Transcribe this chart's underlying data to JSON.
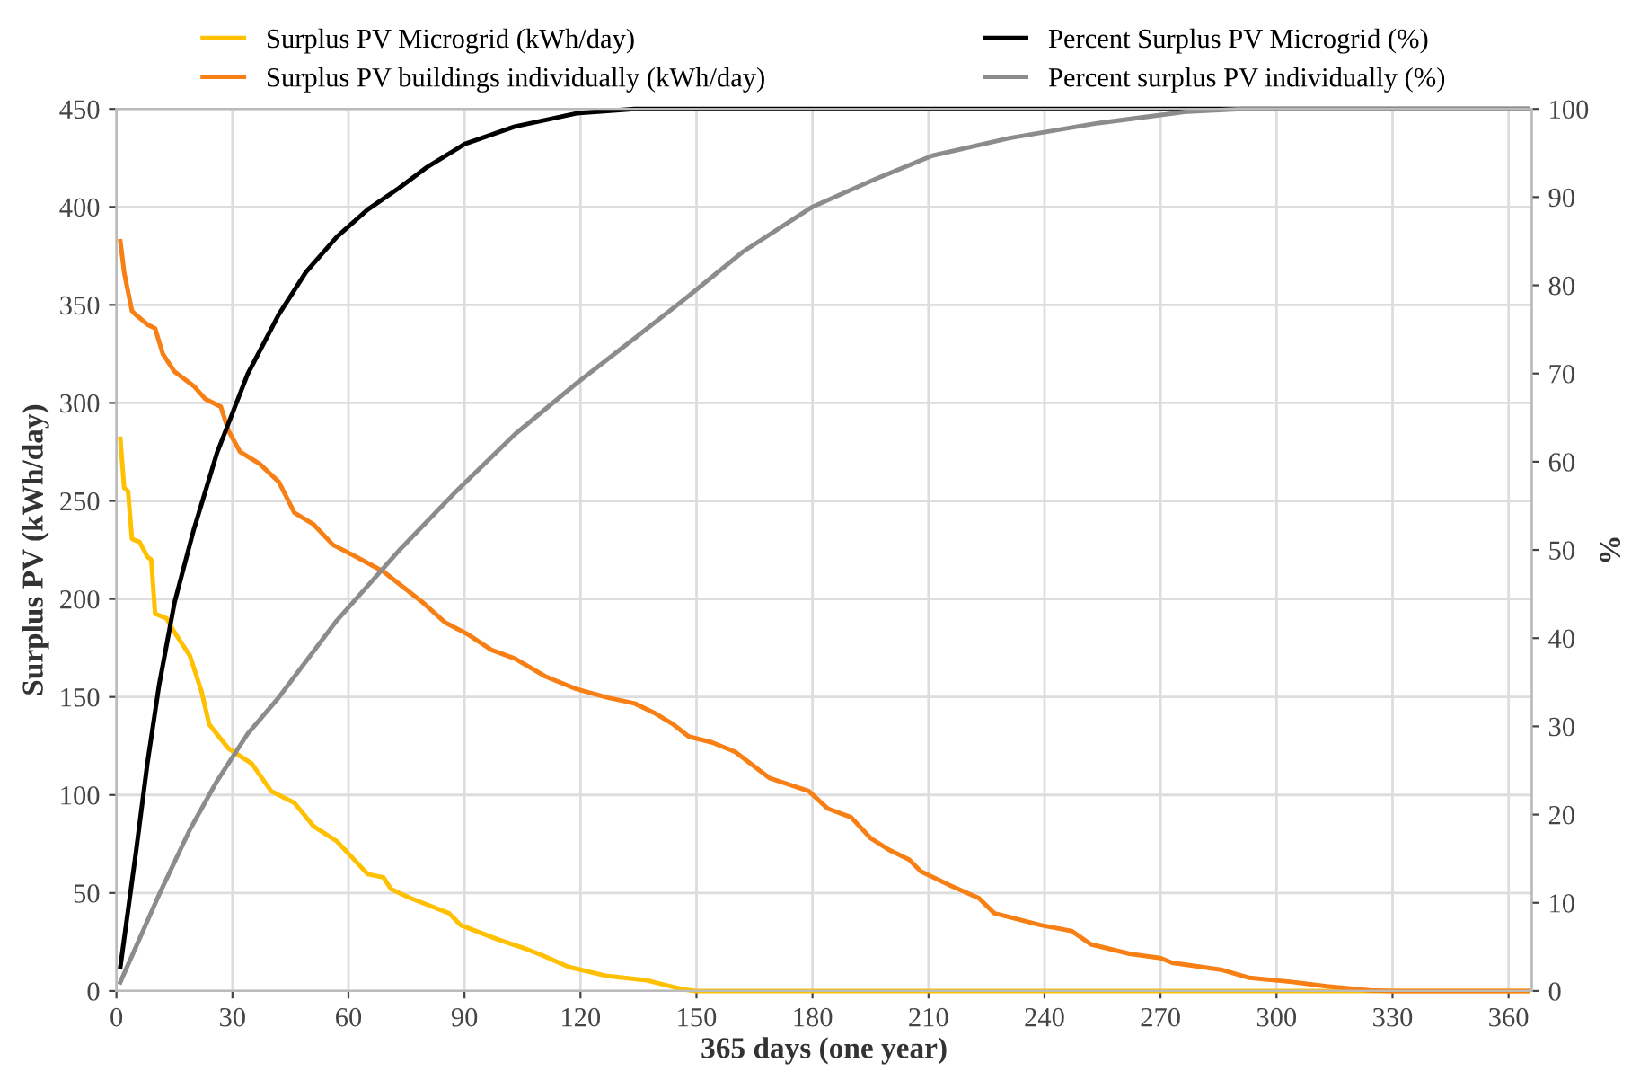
{
  "chart_data": {
    "type": "line",
    "xlabel": "365 days (one year)",
    "ylabel": "Surplus PV (kWh/day)",
    "y2label": "%",
    "xlim": [
      0,
      366
    ],
    "xticks": [
      0,
      30,
      60,
      90,
      120,
      150,
      180,
      210,
      240,
      270,
      300,
      330,
      360
    ],
    "ylim": [
      0,
      450
    ],
    "yticks": [
      0,
      50,
      100,
      150,
      200,
      250,
      300,
      350,
      400,
      450
    ],
    "y2lim": [
      0,
      100
    ],
    "y2ticks": [
      0,
      10,
      20,
      30,
      40,
      50,
      60,
      70,
      80,
      90,
      100
    ],
    "grid": true,
    "legend": "top",
    "marker": "none",
    "line_style": "solid",
    "series": [
      {
        "name": "Surplus PV Microgrid (kWh/day)",
        "color": "#ffc000",
        "x": [
          1,
          2,
          3,
          4,
          6,
          8,
          9,
          10,
          13,
          15,
          19,
          22,
          24,
          26,
          29,
          35,
          40,
          46,
          51,
          57,
          65,
          69,
          71,
          76,
          86,
          89,
          99,
          106,
          110,
          117,
          127,
          137,
          142,
          147,
          150,
          365
        ],
        "values": [
          281.7,
          256.6,
          255,
          230.7,
          229,
          221.5,
          220,
          192.5,
          190,
          183,
          171,
          152.8,
          136,
          131,
          123.7,
          116,
          102,
          96,
          84,
          76.4,
          59.6,
          58,
          52,
          47.4,
          39.7,
          33.6,
          26,
          21.4,
          18.3,
          12.2,
          7.6,
          5.5,
          3,
          0.6,
          0,
          0
        ]
      },
      {
        "name": "Surplus PV buildings individually (kWh/day)",
        "color": "#f77f14",
        "x": [
          1,
          2,
          4,
          5,
          8,
          10,
          12,
          15,
          20,
          23,
          27,
          29,
          32,
          37,
          42,
          46,
          51,
          56,
          62,
          69,
          73,
          79,
          85,
          91,
          97,
          103,
          111,
          119,
          127,
          134,
          139,
          144,
          148,
          154,
          160,
          169,
          179,
          184,
          190,
          195,
          200,
          205,
          208,
          216,
          223,
          227,
          239,
          247,
          252,
          262,
          270,
          273,
          286,
          293,
          304,
          313,
          324,
          330,
          365
        ],
        "values": [
          382.5,
          366.6,
          347,
          345,
          340,
          338,
          325,
          316,
          308.6,
          302,
          298,
          285.7,
          275,
          269,
          259.7,
          244,
          238,
          227.6,
          221.5,
          214,
          207.8,
          198.6,
          188,
          181.8,
          174,
          169.6,
          160.4,
          154,
          149.7,
          146.7,
          142,
          136,
          129.8,
          126.8,
          122,
          108.5,
          102,
          93,
          88.6,
          78,
          71.8,
          67,
          61,
          53.5,
          47.4,
          39.7,
          33.6,
          30.6,
          23.8,
          19,
          16.8,
          14.4,
          10.7,
          6.7,
          4.6,
          2.4,
          0.3,
          0,
          0
        ]
      },
      {
        "name": "Percent Surplus PV Microgrid (%)",
        "color": "#000000",
        "axis": "y2",
        "x": [
          1,
          5,
          8,
          11,
          15,
          20,
          26,
          34,
          42,
          49,
          57,
          65,
          73,
          80,
          90,
          103,
          119,
          134,
          365
        ],
        "values": [
          2.7,
          15.6,
          25.8,
          34.6,
          44,
          52.3,
          61,
          70,
          76.7,
          81.5,
          85.5,
          88.6,
          91,
          93.3,
          96,
          98,
          99.5,
          100,
          100
        ]
      },
      {
        "name": "Percent surplus PV individually (%)",
        "color": "#8c8c8c",
        "axis": "y2",
        "x": [
          1,
          11,
          19,
          26,
          34,
          42,
          57,
          73,
          88,
          103,
          119,
          134,
          148,
          162,
          180,
          196,
          211,
          231,
          254,
          277,
          291,
          365
        ],
        "values": [
          1,
          10.9,
          18.3,
          23.8,
          29.2,
          33.3,
          42,
          49.9,
          56.7,
          63.1,
          68.9,
          74,
          78.8,
          83.8,
          88.9,
          92,
          94.7,
          96.7,
          98.4,
          99.7,
          100,
          100
        ]
      }
    ]
  }
}
